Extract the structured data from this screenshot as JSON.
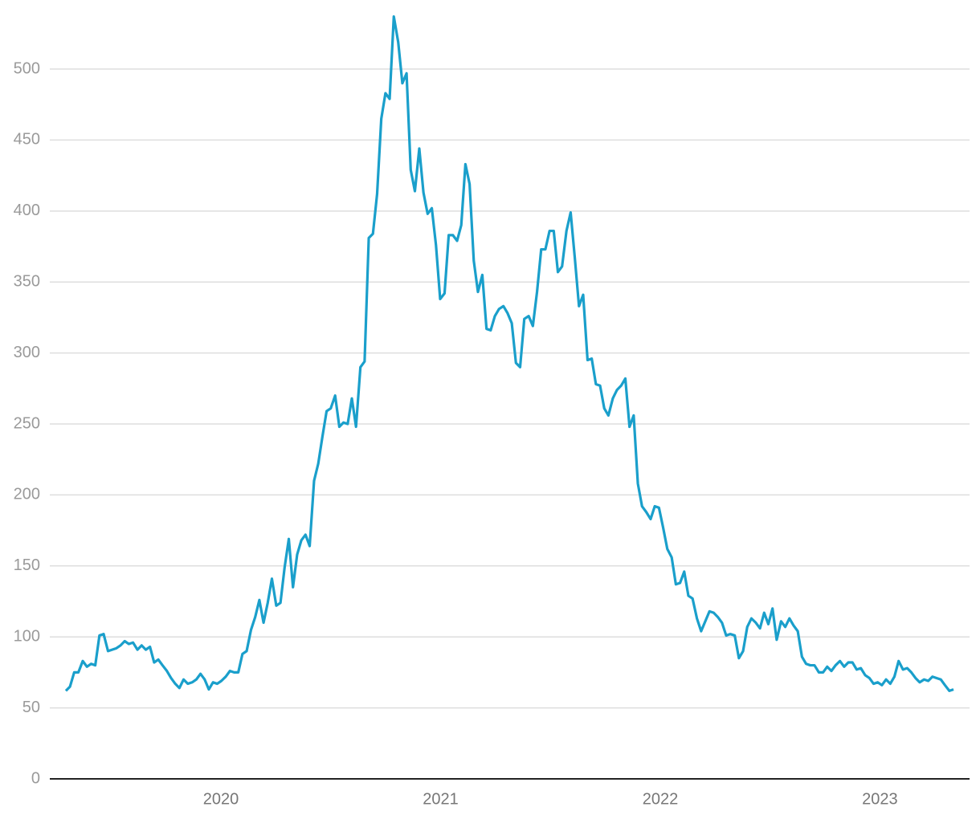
{
  "chart_data": {
    "type": "line",
    "color": "#1a9fcb",
    "grid": true,
    "xlim": [
      2019.221,
      2023.408
    ],
    "xticks": [
      2020,
      2021,
      2022,
      2023
    ],
    "ylim": [
      0,
      540
    ],
    "yticks": [
      0,
      50,
      100,
      150,
      200,
      250,
      300,
      350,
      400,
      450,
      500
    ],
    "x": [
      2019.294,
      2019.313,
      2019.332,
      2019.351,
      2019.371,
      2019.39,
      2019.409,
      2019.428,
      2019.447,
      2019.466,
      2019.486,
      2019.505,
      2019.524,
      2019.543,
      2019.562,
      2019.581,
      2019.6,
      2019.62,
      2019.639,
      2019.658,
      2019.677,
      2019.696,
      2019.715,
      2019.734,
      2019.754,
      2019.773,
      2019.792,
      2019.811,
      2019.83,
      2019.849,
      2019.869,
      2019.888,
      2019.907,
      2019.926,
      2019.945,
      2019.964,
      2019.983,
      2020.002,
      2020.022,
      2020.041,
      2020.06,
      2020.079,
      2020.098,
      2020.117,
      2020.137,
      2020.156,
      2020.175,
      2020.194,
      2020.213,
      2020.232,
      2020.252,
      2020.271,
      2020.29,
      2020.309,
      2020.328,
      2020.347,
      2020.366,
      2020.385,
      2020.404,
      2020.424,
      2020.443,
      2020.462,
      2020.481,
      2020.5,
      2020.52,
      2020.539,
      2020.558,
      2020.577,
      2020.596,
      2020.615,
      2020.635,
      2020.654,
      2020.673,
      2020.692,
      2020.711,
      2020.73,
      2020.749,
      2020.768,
      2020.787,
      2020.807,
      2020.826,
      2020.845,
      2020.864,
      2020.883,
      2020.903,
      2020.922,
      2020.941,
      2020.96,
      2020.979,
      2020.998,
      2021.018,
      2021.037,
      2021.056,
      2021.075,
      2021.094,
      2021.113,
      2021.132,
      2021.151,
      2021.17,
      2021.19,
      2021.209,
      2021.228,
      2021.247,
      2021.266,
      2021.286,
      2021.305,
      2021.324,
      2021.343,
      2021.362,
      2021.381,
      2021.401,
      2021.42,
      2021.439,
      2021.458,
      2021.477,
      2021.496,
      2021.515,
      2021.534,
      2021.553,
      2021.573,
      2021.592,
      2021.611,
      2021.63,
      2021.649,
      2021.669,
      2021.688,
      2021.707,
      2021.726,
      2021.745,
      2021.764,
      2021.784,
      2021.803,
      2021.822,
      2021.841,
      2021.86,
      2021.879,
      2021.898,
      2021.917,
      2021.936,
      2021.956,
      2021.975,
      2021.994,
      2022.013,
      2022.032,
      2022.052,
      2022.071,
      2022.09,
      2022.109,
      2022.128,
      2022.147,
      2022.167,
      2022.186,
      2022.205,
      2022.224,
      2022.243,
      2022.262,
      2022.281,
      2022.3,
      2022.319,
      2022.339,
      2022.358,
      2022.377,
      2022.396,
      2022.415,
      2022.435,
      2022.454,
      2022.473,
      2022.492,
      2022.511,
      2022.53,
      2022.55,
      2022.569,
      2022.588,
      2022.607,
      2022.626,
      2022.645,
      2022.664,
      2022.683,
      2022.702,
      2022.722,
      2022.741,
      2022.76,
      2022.779,
      2022.798,
      2022.818,
      2022.837,
      2022.856,
      2022.875,
      2022.894,
      2022.913,
      2022.933,
      2022.952,
      2022.971,
      2022.99,
      2023.009,
      2023.028,
      2023.047,
      2023.066,
      2023.085,
      2023.105,
      2023.124,
      2023.143,
      2023.162,
      2023.181,
      2023.201,
      2023.22,
      2023.239,
      2023.258,
      2023.277,
      2023.296,
      2023.316,
      2023.335
    ],
    "values": [
      62,
      65,
      75,
      75,
      83,
      79,
      81,
      80,
      101,
      102,
      90,
      91,
      92,
      94,
      97,
      95,
      96,
      91,
      94,
      91,
      93,
      82,
      84,
      80,
      76,
      71,
      67,
      64,
      70,
      67,
      68,
      70,
      74,
      70,
      63,
      68,
      67,
      69,
      72,
      76,
      75,
      75,
      88,
      90,
      105,
      114,
      126,
      110,
      124,
      141,
      122,
      124,
      149,
      169,
      135,
      158,
      168,
      172,
      164,
      210,
      222,
      241,
      259,
      261,
      270,
      248,
      251,
      250,
      268,
      248,
      290,
      294,
      381,
      384,
      412,
      465,
      483,
      479,
      537,
      519,
      490,
      497,
      429,
      414,
      444,
      413,
      398,
      402,
      376,
      338,
      342,
      383,
      383,
      379,
      390,
      433,
      419,
      365,
      343,
      355,
      317,
      316,
      326,
      331,
      333,
      328,
      321,
      293,
      290,
      324,
      326,
      319,
      343,
      373,
      373,
      386,
      386,
      357,
      361,
      386,
      399,
      367,
      333,
      341,
      295,
      296,
      278,
      277,
      261,
      256,
      268,
      274,
      277,
      282,
      248,
      256,
      208,
      192,
      188,
      183,
      192,
      191,
      177,
      162,
      156,
      137,
      138,
      146,
      129,
      127,
      113,
      104,
      111,
      118,
      117,
      114,
      110,
      101,
      102,
      101,
      85,
      90,
      107,
      113,
      110,
      106,
      117,
      109,
      120,
      98,
      111,
      107,
      113,
      108,
      104,
      86,
      81,
      80,
      80,
      75,
      75,
      79,
      76,
      80,
      83,
      79,
      82,
      82,
      77,
      78,
      73,
      71,
      67,
      68,
      66,
      70,
      67,
      72,
      83,
      77,
      78,
      75,
      71,
      68,
      70,
      69,
      72,
      71,
      70,
      66,
      62,
      63
    ]
  }
}
